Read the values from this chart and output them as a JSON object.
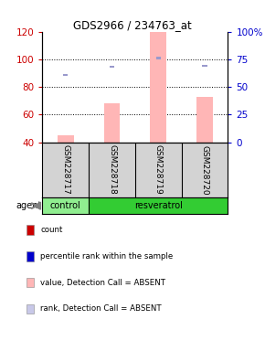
{
  "title": "GDS2966 / 234763_at",
  "samples": [
    "GSM228717",
    "GSM228718",
    "GSM228719",
    "GSM228720"
  ],
  "ylim_left": [
    40,
    120
  ],
  "ylim_right": [
    0,
    100
  ],
  "yticks_left": [
    40,
    60,
    80,
    100,
    120
  ],
  "ytick_labels_left": [
    "40",
    "60",
    "80",
    "100",
    "120"
  ],
  "yticks_right": [
    0,
    25,
    50,
    75,
    100
  ],
  "ytick_labels_right": [
    "0",
    "25",
    "50",
    "75",
    "100%"
  ],
  "pink_bar_values": [
    45,
    68,
    120,
    73
  ],
  "pink_bar_base": 40,
  "blue_sq_values": [
    61,
    68,
    76,
    69
  ],
  "bar_width": 0.35,
  "pink_bar_color": "#ffb6b6",
  "blue_sq_color": "#9999cc",
  "bg_color_plot": "#ffffff",
  "bg_color_sample": "#d3d3d3",
  "bg_color_ctrl": "#90ee90",
  "bg_color_resv": "#33cc33",
  "left_axis_color": "#cc0000",
  "right_axis_color": "#0000cc",
  "legend_items": [
    {
      "color": "#cc0000",
      "label": "count"
    },
    {
      "color": "#0000cc",
      "label": "percentile rank within the sample"
    },
    {
      "color": "#ffb6b6",
      "label": "value, Detection Call = ABSENT"
    },
    {
      "color": "#c8c8e8",
      "label": "rank, Detection Call = ABSENT"
    }
  ],
  "agent_label": "agent"
}
